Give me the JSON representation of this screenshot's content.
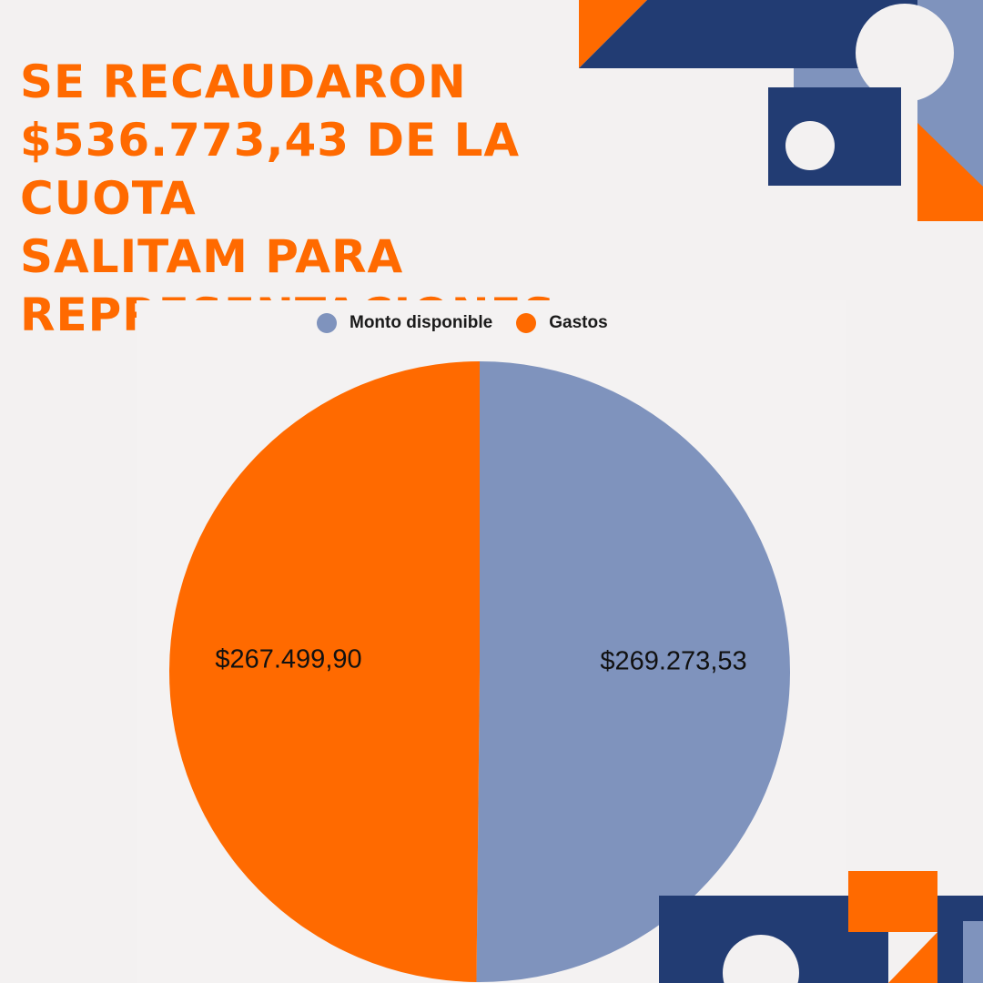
{
  "header": {
    "title_lines": [
      "SE RECAUDARON",
      "$536.773,43 DE LA CUOTA",
      "SALITAM PARA",
      "REPRESENTACIONES"
    ]
  },
  "colors": {
    "accent": "#ff6a00",
    "navy": "#223c73",
    "slate": "#7f93bd",
    "background": "#f3f1f1"
  },
  "chart_data": {
    "type": "pie",
    "title": "",
    "legend_position": "top-center",
    "slices": [
      {
        "name": "Monto disponible",
        "value": 269273.53,
        "label": "$269.273,53",
        "color": "#7f93bd"
      },
      {
        "name": "Gastos",
        "value": 267499.9,
        "label": "$267.499,90",
        "color": "#ff6a00"
      }
    ]
  }
}
